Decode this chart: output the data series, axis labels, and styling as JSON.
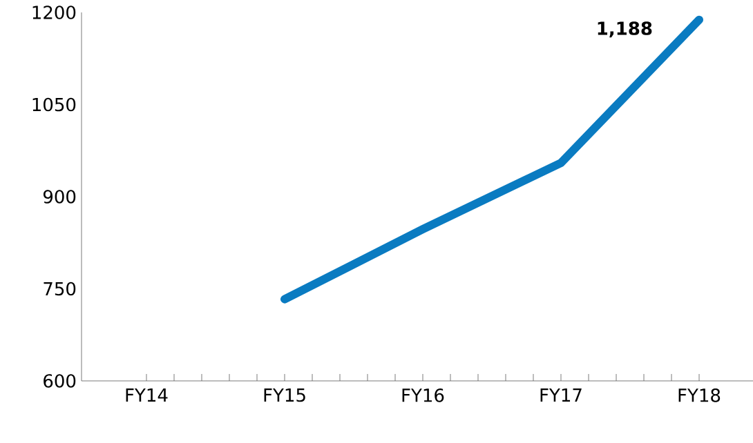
{
  "chart_data": {
    "type": "line",
    "categories": [
      "FY14",
      "FY15",
      "FY16",
      "FY17",
      "FY18"
    ],
    "values": [
      null,
      733,
      847,
      955,
      1188
    ],
    "color": "#0a7bc1",
    "ylim": [
      600,
      1200
    ],
    "yticks": [
      600,
      750,
      900,
      1050,
      1200
    ],
    "annotations": [
      {
        "text": "**1,188**",
        "x": "FY18",
        "y": 1188
      }
    ]
  }
}
